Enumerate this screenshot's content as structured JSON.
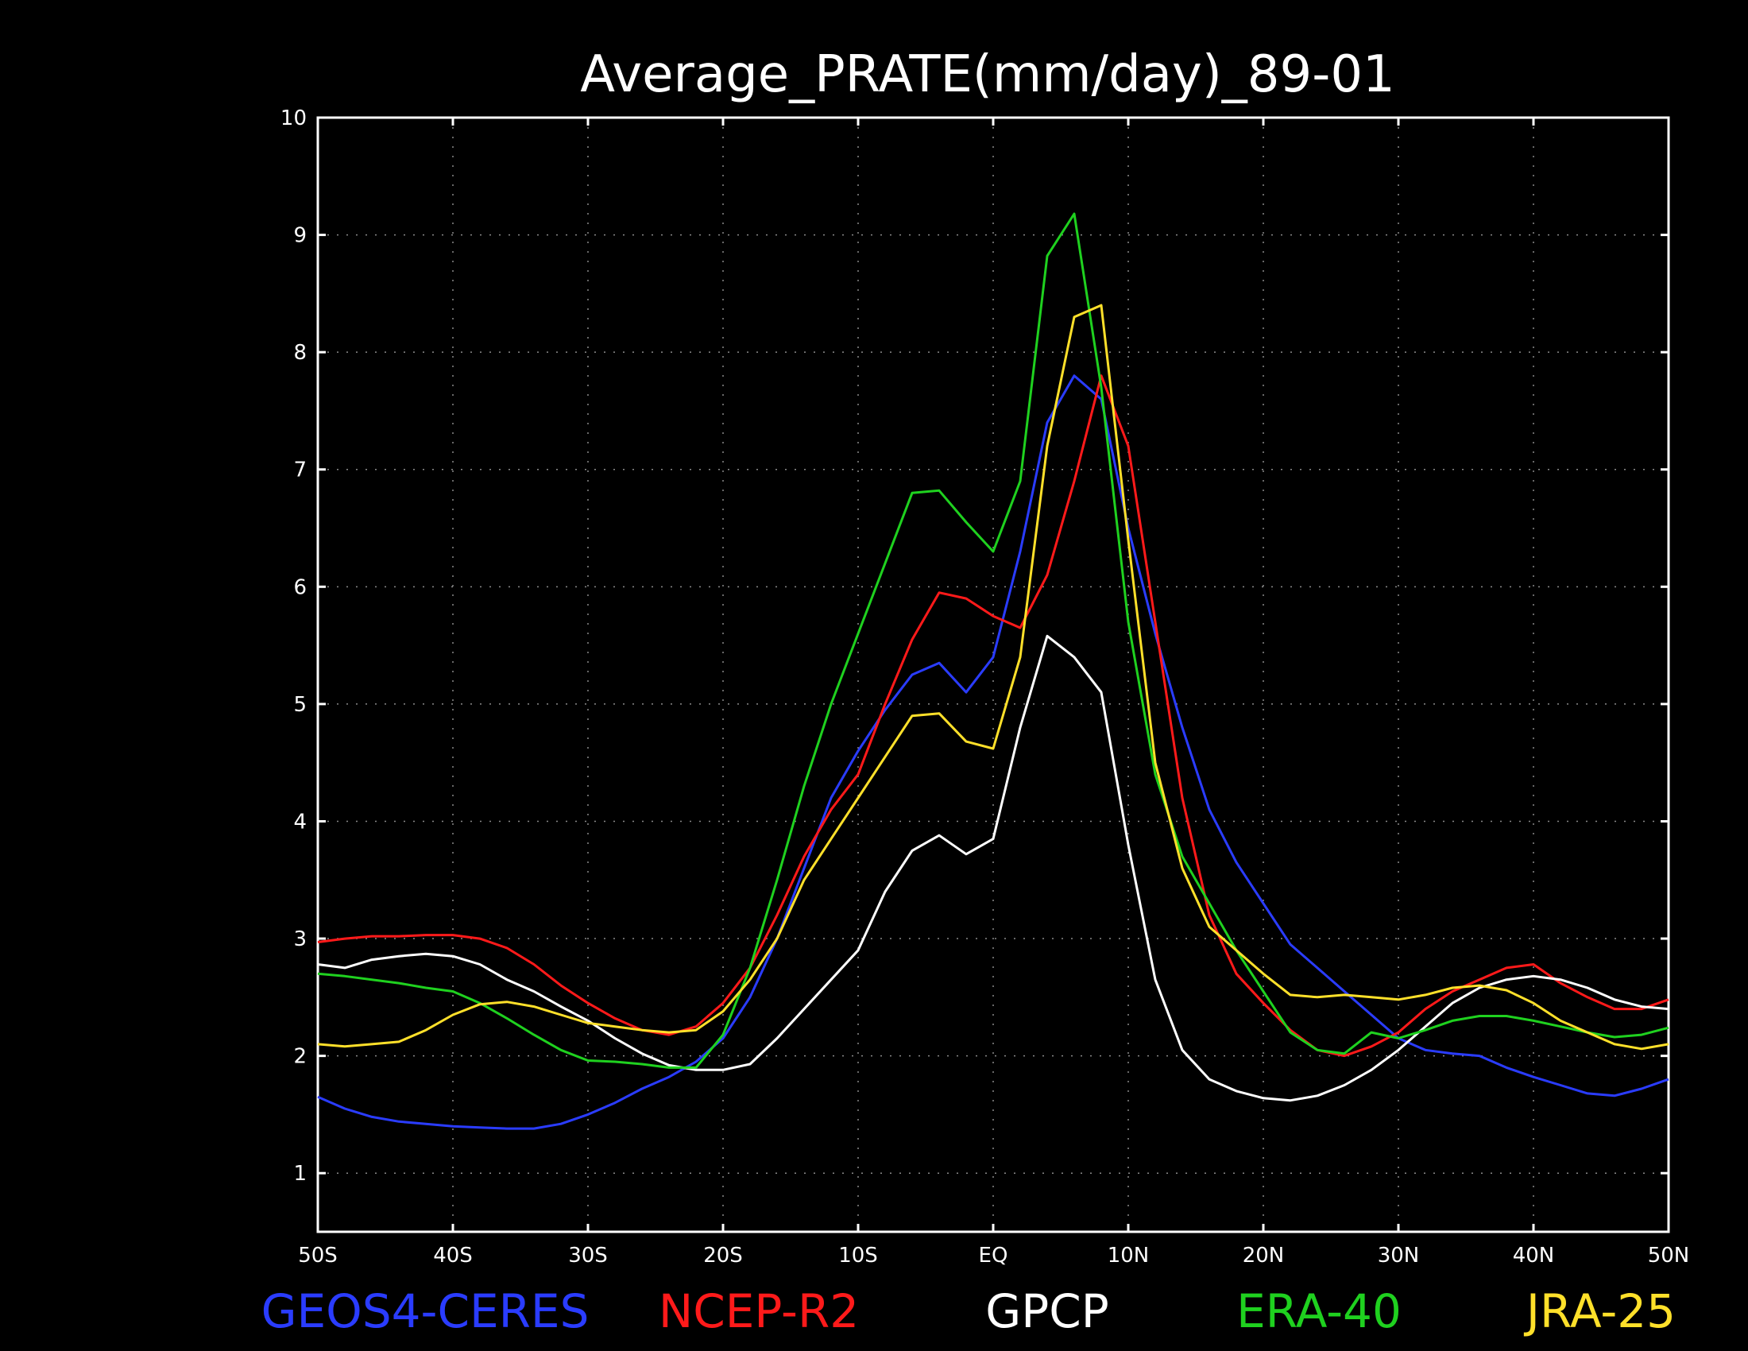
{
  "chart_data": {
    "type": "line",
    "title": "Average_PRATE(mm/day)_89-01",
    "xlabel": "",
    "ylabel": "",
    "xlim": [
      -50,
      50
    ],
    "ylim": [
      0.5,
      10
    ],
    "grid": true,
    "legend_position": "bottom",
    "x_ticks": [
      {
        "value": -50,
        "label": "50S"
      },
      {
        "value": -40,
        "label": "40S"
      },
      {
        "value": -30,
        "label": "30S"
      },
      {
        "value": -20,
        "label": "20S"
      },
      {
        "value": -10,
        "label": "10S"
      },
      {
        "value": 0,
        "label": "EQ"
      },
      {
        "value": 10,
        "label": "10N"
      },
      {
        "value": 20,
        "label": "20N"
      },
      {
        "value": 30,
        "label": "30N"
      },
      {
        "value": 40,
        "label": "40N"
      },
      {
        "value": 50,
        "label": "50N"
      }
    ],
    "y_ticks": [
      {
        "value": 1,
        "label": "1"
      },
      {
        "value": 2,
        "label": "2"
      },
      {
        "value": 3,
        "label": "3"
      },
      {
        "value": 4,
        "label": "4"
      },
      {
        "value": 5,
        "label": "5"
      },
      {
        "value": 6,
        "label": "6"
      },
      {
        "value": 7,
        "label": "7"
      },
      {
        "value": 8,
        "label": "8"
      },
      {
        "value": 9,
        "label": "9"
      },
      {
        "value": 10,
        "label": "10"
      }
    ],
    "x": [
      -50,
      -48,
      -46,
      -44,
      -42,
      -40,
      -38,
      -36,
      -34,
      -32,
      -30,
      -28,
      -26,
      -24,
      -22,
      -20,
      -18,
      -16,
      -14,
      -12,
      -10,
      -8,
      -6,
      -4,
      -2,
      0,
      2,
      4,
      6,
      8,
      10,
      12,
      14,
      16,
      18,
      20,
      22,
      24,
      26,
      28,
      30,
      32,
      34,
      36,
      38,
      40,
      42,
      44,
      46,
      48,
      50
    ],
    "series": [
      {
        "name": "GEOS4-CERES",
        "color": "#2a3cff",
        "values": [
          1.65,
          1.55,
          1.48,
          1.44,
          1.42,
          1.4,
          1.39,
          1.38,
          1.38,
          1.42,
          1.5,
          1.6,
          1.72,
          1.82,
          1.95,
          2.15,
          2.5,
          3.0,
          3.6,
          4.2,
          4.6,
          4.95,
          5.25,
          5.35,
          5.1,
          5.4,
          6.3,
          7.4,
          7.8,
          7.6,
          6.5,
          5.6,
          4.8,
          4.1,
          3.65,
          3.3,
          2.95,
          2.75,
          2.55,
          2.35,
          2.15,
          2.05,
          2.02,
          2.0,
          1.9,
          1.82,
          1.75,
          1.68,
          1.66,
          1.72,
          1.8
        ]
      },
      {
        "name": "NCEP-R2",
        "color": "#ff1a1a",
        "values": [
          2.97,
          3.0,
          3.02,
          3.02,
          3.03,
          3.03,
          3.0,
          2.92,
          2.78,
          2.6,
          2.45,
          2.32,
          2.22,
          2.18,
          2.25,
          2.45,
          2.75,
          3.2,
          3.7,
          4.1,
          4.4,
          5.0,
          5.55,
          5.95,
          5.9,
          5.75,
          5.65,
          6.1,
          6.9,
          7.8,
          7.2,
          5.7,
          4.2,
          3.2,
          2.7,
          2.45,
          2.22,
          2.05,
          2.0,
          2.08,
          2.2,
          2.4,
          2.55,
          2.65,
          2.75,
          2.78,
          2.62,
          2.5,
          2.4,
          2.4,
          2.48
        ]
      },
      {
        "name": "GPCP",
        "color": "#ffffff",
        "values": [
          2.78,
          2.75,
          2.82,
          2.85,
          2.87,
          2.85,
          2.78,
          2.65,
          2.55,
          2.42,
          2.3,
          2.15,
          2.02,
          1.92,
          1.88,
          1.88,
          1.93,
          2.15,
          2.4,
          2.65,
          2.9,
          3.4,
          3.75,
          3.88,
          3.72,
          3.85,
          4.8,
          5.58,
          5.4,
          5.1,
          3.8,
          2.65,
          2.05,
          1.8,
          1.7,
          1.64,
          1.62,
          1.66,
          1.75,
          1.88,
          2.05,
          2.25,
          2.45,
          2.58,
          2.65,
          2.68,
          2.65,
          2.58,
          2.48,
          2.42,
          2.4
        ]
      },
      {
        "name": "ERA-40",
        "color": "#1fd11f",
        "values": [
          2.7,
          2.68,
          2.65,
          2.62,
          2.58,
          2.55,
          2.45,
          2.32,
          2.18,
          2.05,
          1.96,
          1.95,
          1.93,
          1.9,
          1.9,
          2.18,
          2.75,
          3.5,
          4.3,
          5.0,
          5.6,
          6.2,
          6.8,
          6.82,
          6.55,
          6.3,
          6.9,
          8.82,
          9.18,
          7.7,
          5.7,
          4.4,
          3.7,
          3.3,
          2.9,
          2.55,
          2.2,
          2.05,
          2.02,
          2.2,
          2.15,
          2.22,
          2.3,
          2.34,
          2.34,
          2.3,
          2.25,
          2.2,
          2.16,
          2.18,
          2.24
        ]
      },
      {
        "name": "JRA-25",
        "color": "#ffe02a",
        "values": [
          2.1,
          2.08,
          2.1,
          2.12,
          2.22,
          2.35,
          2.44,
          2.46,
          2.42,
          2.35,
          2.28,
          2.25,
          2.22,
          2.2,
          2.22,
          2.38,
          2.65,
          3.0,
          3.5,
          3.85,
          4.2,
          4.55,
          4.9,
          4.92,
          4.68,
          4.62,
          5.4,
          7.2,
          8.3,
          8.4,
          6.4,
          4.5,
          3.6,
          3.1,
          2.9,
          2.7,
          2.52,
          2.5,
          2.52,
          2.5,
          2.48,
          2.52,
          2.58,
          2.6,
          2.56,
          2.45,
          2.3,
          2.2,
          2.1,
          2.06,
          2.1
        ]
      }
    ]
  }
}
